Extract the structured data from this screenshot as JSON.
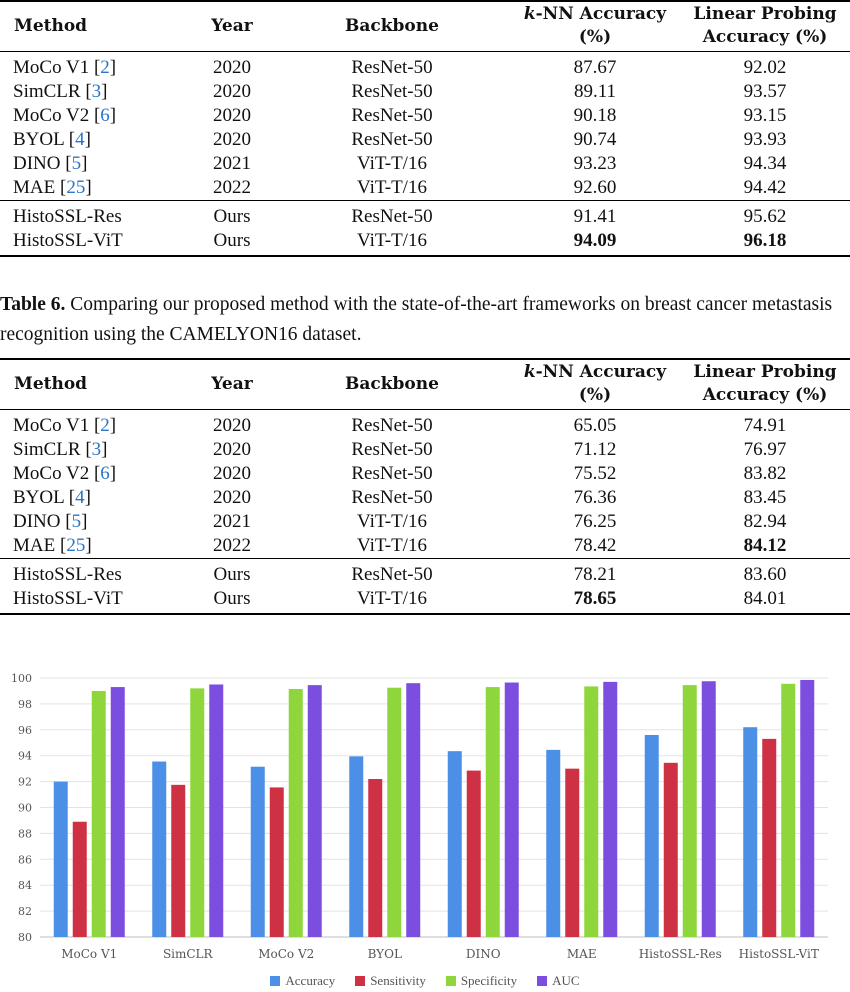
{
  "table_top": {
    "headers": {
      "method": "Method",
      "year": "Year",
      "backbone": "Backbone",
      "knn_italic": "k",
      "knn_rest": "-NN Accuracy",
      "knn_unit": "(%)",
      "linear_line1": "Linear Probing",
      "linear_line2": "Accuracy (%)"
    },
    "rows": [
      {
        "method": "MoCo V1",
        "cite": "2",
        "year": "2020",
        "backbone": "ResNet-50",
        "knn": "87.67",
        "linear": "92.02"
      },
      {
        "method": "SimCLR",
        "cite": "3",
        "year": "2020",
        "backbone": "ResNet-50",
        "knn": "89.11",
        "linear": "93.57"
      },
      {
        "method": "MoCo V2",
        "cite": "6",
        "year": "2020",
        "backbone": "ResNet-50",
        "knn": "90.18",
        "linear": "93.15"
      },
      {
        "method": "BYOL",
        "cite": "4",
        "year": "2020",
        "backbone": "ResNet-50",
        "knn": "90.74",
        "linear": "93.93"
      },
      {
        "method": "DINO",
        "cite": "5",
        "year": "2021",
        "backbone": "ViT-T/16",
        "knn": "93.23",
        "linear": "94.34"
      },
      {
        "method": "MAE",
        "cite": "25",
        "year": "2022",
        "backbone": "ViT-T/16",
        "knn": "92.60",
        "linear": "94.42"
      },
      {
        "method": "HistoSSL-Res",
        "year": "Ours",
        "backbone": "ResNet-50",
        "knn": "91.41",
        "linear": "95.62"
      },
      {
        "method": "HistoSSL-ViT",
        "year": "Ours",
        "backbone": "ViT-T/16",
        "knn": "94.09",
        "linear": "96.18"
      }
    ]
  },
  "caption": {
    "label": "Table 6.",
    "text": "Comparing our proposed method with the state-of-the-art frameworks on breast cancer metastasis recognition using the CAMELYON16 dataset."
  },
  "table_bottom": {
    "headers": {
      "method": "Method",
      "year": "Year",
      "backbone": "Backbone",
      "knn_italic": "k",
      "knn_rest": "-NN Accuracy",
      "knn_unit": "(%)",
      "linear_line1": "Linear Probing",
      "linear_line2": "Accuracy (%)"
    },
    "rows": [
      {
        "method": "MoCo V1",
        "cite": "2",
        "year": "2020",
        "backbone": "ResNet-50",
        "knn": "65.05",
        "linear": "74.91"
      },
      {
        "method": "SimCLR",
        "cite": "3",
        "year": "2020",
        "backbone": "ResNet-50",
        "knn": "71.12",
        "linear": "76.97"
      },
      {
        "method": "MoCo V2",
        "cite": "6",
        "year": "2020",
        "backbone": "ResNet-50",
        "knn": "75.52",
        "linear": "83.82"
      },
      {
        "method": "BYOL",
        "cite": "4",
        "year": "2020",
        "backbone": "ResNet-50",
        "knn": "76.36",
        "linear": "83.45"
      },
      {
        "method": "DINO",
        "cite": "5",
        "year": "2021",
        "backbone": "ViT-T/16",
        "knn": "76.25",
        "linear": "82.94"
      },
      {
        "method": "MAE",
        "cite": "25",
        "year": "2022",
        "backbone": "ViT-T/16",
        "knn": "78.42",
        "linear": "84.12"
      },
      {
        "method": "HistoSSL-Res",
        "year": "Ours",
        "backbone": "ResNet-50",
        "knn": "78.21",
        "linear": "83.60"
      },
      {
        "method": "HistoSSL-ViT",
        "year": "Ours",
        "backbone": "ViT-T/16",
        "knn": "78.65",
        "linear": "84.01"
      }
    ]
  },
  "chart_data": {
    "type": "bar",
    "title": "",
    "xlabel": "",
    "ylabel": "",
    "ylim": [
      80,
      100
    ],
    "yticks": [
      80,
      82,
      84,
      86,
      88,
      90,
      92,
      94,
      96,
      98,
      100
    ],
    "grid": true,
    "legend_position": "bottom",
    "categories": [
      "MoCo V1",
      "SimCLR",
      "MoCo V2",
      "BYOL",
      "DINO",
      "MAE",
      "HistoSSL-Res",
      "HistoSSL-ViT"
    ],
    "series": [
      {
        "name": "Accuracy",
        "color": "#4b8fe6",
        "values": [
          92.0,
          93.55,
          93.15,
          93.95,
          94.35,
          94.45,
          95.6,
          96.2
        ]
      },
      {
        "name": "Sensitivity",
        "color": "#cf3144",
        "values": [
          88.9,
          91.75,
          91.55,
          92.2,
          92.85,
          93.0,
          93.45,
          95.3
        ]
      },
      {
        "name": "Specificity",
        "color": "#8ed63c",
        "values": [
          99.0,
          99.2,
          99.15,
          99.25,
          99.3,
          99.35,
          99.45,
          99.55
        ]
      },
      {
        "name": "AUC",
        "color": "#7b4ee0",
        "values": [
          99.3,
          99.5,
          99.45,
          99.6,
          99.65,
          99.7,
          99.75,
          99.85
        ]
      }
    ]
  }
}
